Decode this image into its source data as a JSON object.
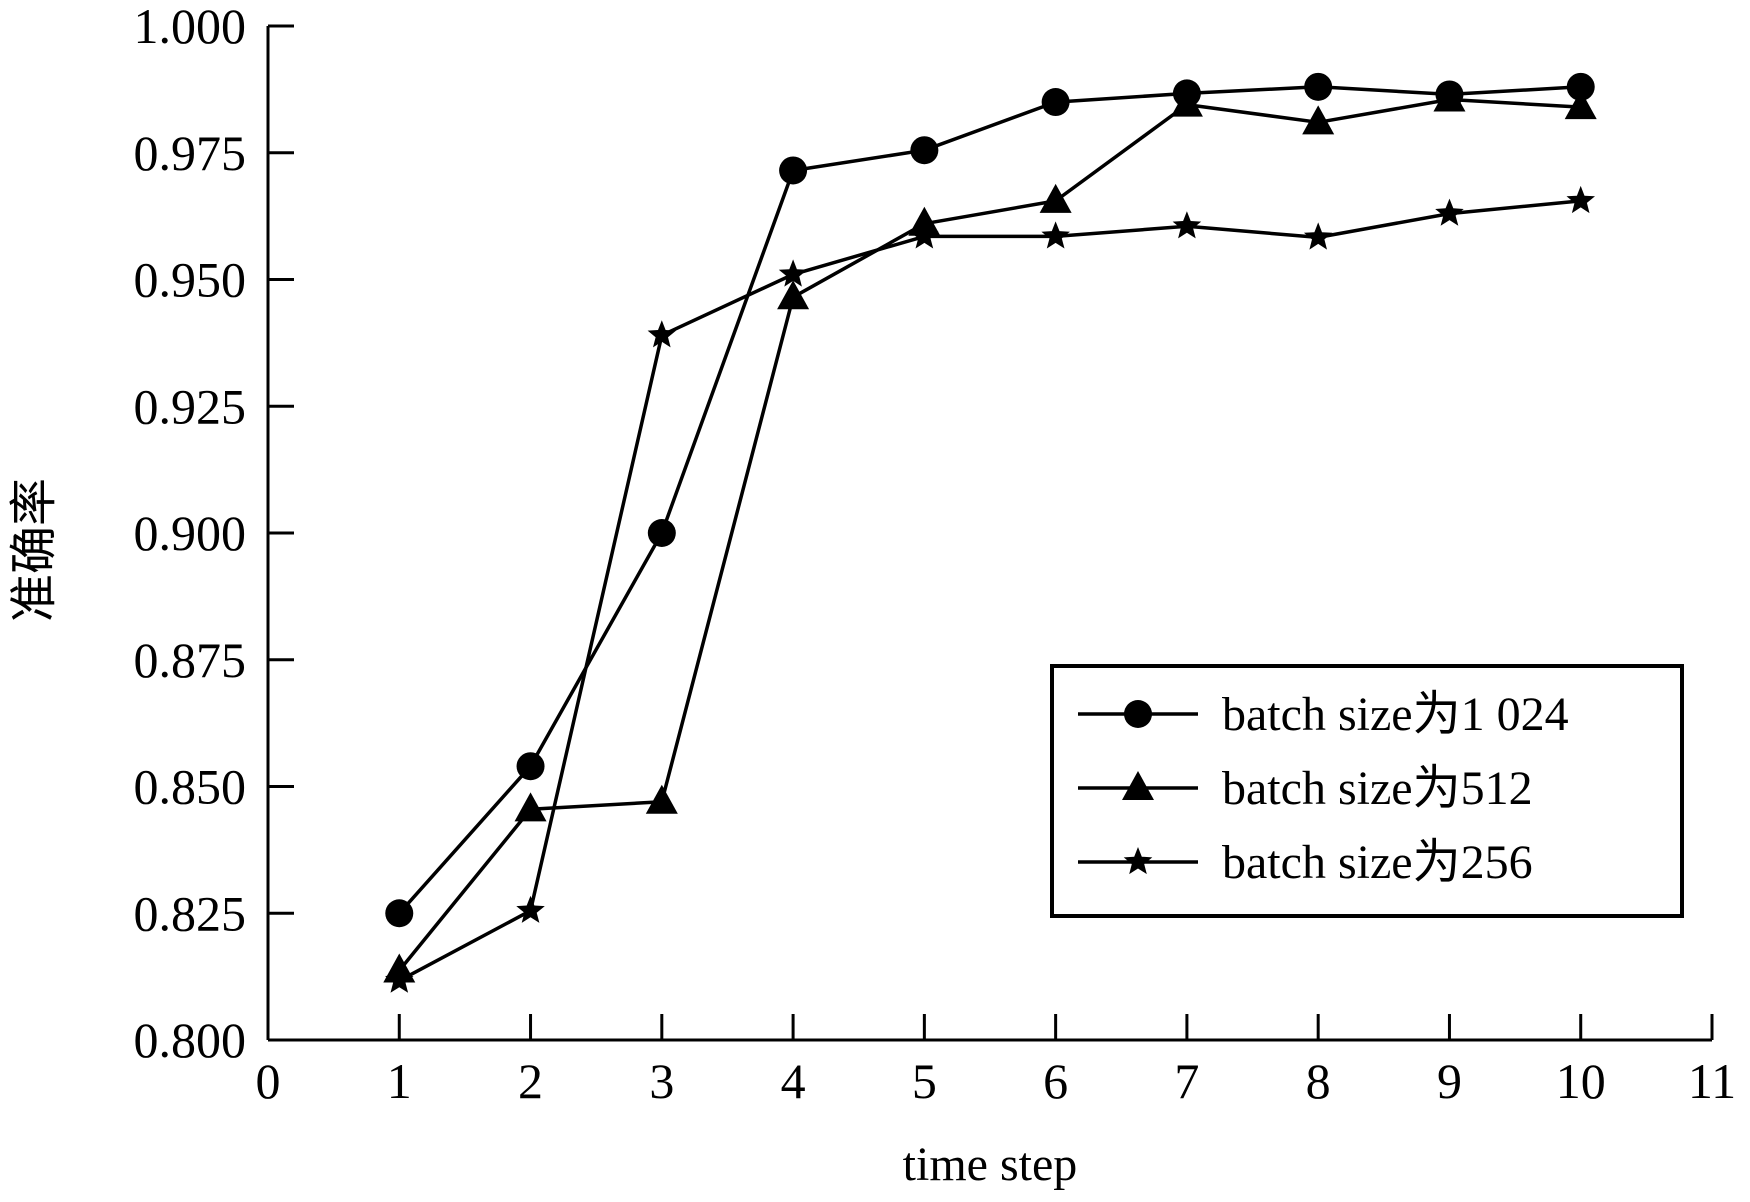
{
  "chart_data": {
    "type": "line",
    "title": "",
    "xlabel": "time step",
    "ylabel": "准确率",
    "xlim": [
      0,
      11
    ],
    "ylim": [
      0.8,
      1.0
    ],
    "x_ticks": [
      "0",
      "1",
      "2",
      "3",
      "4",
      "5",
      "6",
      "7",
      "8",
      "9",
      "10",
      "11"
    ],
    "y_ticks": [
      "0.800",
      "0.825",
      "0.850",
      "0.875",
      "0.900",
      "0.925",
      "0.950",
      "0.975",
      "1.000"
    ],
    "grid": false,
    "legend_position": "lower-right",
    "series": [
      {
        "name": "batch size为1 024",
        "marker": "circle",
        "color": "#000000",
        "x": [
          1,
          2,
          3,
          4,
          5,
          6,
          7,
          8,
          9,
          10
        ],
        "values": [
          0.825,
          0.854,
          0.9,
          0.9715,
          0.9755,
          0.985,
          0.9867,
          0.988,
          0.9865,
          0.988
        ]
      },
      {
        "name": "batch size为512",
        "marker": "triangle",
        "color": "#000000",
        "x": [
          1,
          2,
          3,
          4,
          5,
          6,
          7,
          8,
          9,
          10
        ],
        "values": [
          0.8137,
          0.8455,
          0.847,
          0.9465,
          0.961,
          0.9655,
          0.9845,
          0.981,
          0.9855,
          0.984
        ]
      },
      {
        "name": "batch size为256",
        "marker": "star",
        "color": "#000000",
        "x": [
          1,
          2,
          3,
          4,
          5,
          6,
          7,
          8,
          9,
          10
        ],
        "values": [
          0.8117,
          0.8255,
          0.939,
          0.951,
          0.9585,
          0.9585,
          0.9605,
          0.9583,
          0.963,
          0.9655
        ]
      }
    ]
  }
}
